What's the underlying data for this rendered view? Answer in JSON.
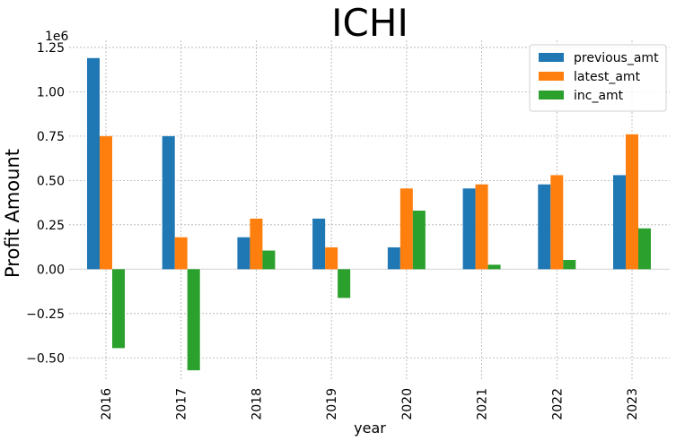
{
  "chart_data": {
    "type": "bar",
    "title": "ICHI",
    "xlabel": "year",
    "ylabel": "Profit Amount",
    "y_offset_label": "1e6",
    "categories": [
      "2016",
      "2017",
      "2018",
      "2019",
      "2020",
      "2021",
      "2022",
      "2023"
    ],
    "series": [
      {
        "name": "previous_amt",
        "color": "#1f77b4",
        "values": [
          1190000,
          750000,
          180000,
          285000,
          123000,
          455000,
          478000,
          530000
        ]
      },
      {
        "name": "latest_amt",
        "color": "#ff7f0e",
        "values": [
          750000,
          180000,
          285000,
          123000,
          455000,
          478000,
          530000,
          760000
        ]
      },
      {
        "name": "inc_amt",
        "color": "#2ca02c",
        "values": [
          -445000,
          -570000,
          105000,
          -162000,
          330000,
          25000,
          52000,
          230000
        ]
      }
    ],
    "ylim": [
      -0.63,
      1.29
    ],
    "y_ticks": [
      -0.5,
      -0.25,
      0.0,
      0.25,
      0.5,
      0.75,
      1.0,
      1.25
    ],
    "y_tick_labels": [
      "−0.50",
      "−0.25",
      "0.00",
      "0.25",
      "0.50",
      "0.75",
      "1.00",
      "1.25"
    ],
    "grid": true,
    "legend_position": "top-right"
  }
}
